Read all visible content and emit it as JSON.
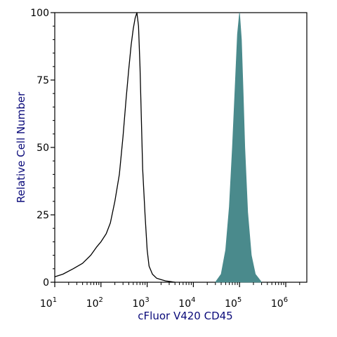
{
  "chart_data": {
    "type": "area",
    "title": "",
    "xlabel": "cFluor V420 CD45",
    "ylabel": "Relative Cell Number",
    "x_scale": "log",
    "xlim": [
      10,
      40000000
    ],
    "ylim": [
      0,
      100
    ],
    "y_ticks": [
      0,
      25,
      50,
      75,
      100
    ],
    "x_tick_labels": [
      {
        "base": "10",
        "exp": "1",
        "value": 10
      },
      {
        "base": "10",
        "exp": "2",
        "value": 100
      },
      {
        "base": "10",
        "exp": "3",
        "value": 1000
      },
      {
        "base": "10",
        "exp": "4",
        "value": 10000
      },
      {
        "base": "10",
        "exp": "5",
        "value": 100000
      },
      {
        "base": "10",
        "exp": "6",
        "value": 1000000
      }
    ],
    "grid": false,
    "series": [
      {
        "style": "outline",
        "color": "#000000",
        "x": [
          10,
          15,
          25,
          40,
          60,
          80,
          100,
          130,
          160,
          200,
          250,
          300,
          350,
          400,
          450,
          500,
          550,
          600,
          650,
          700,
          750,
          800,
          900,
          1000,
          1100,
          1300,
          1600,
          2000,
          2500,
          3000,
          4000
        ],
        "y": [
          2,
          3,
          5,
          7,
          10,
          13,
          15,
          18,
          22,
          30,
          40,
          54,
          68,
          79,
          88,
          94,
          98,
          100,
          95,
          80,
          60,
          42,
          25,
          12,
          6,
          3,
          1.5,
          1,
          0.5,
          0.3,
          0
        ]
      },
      {
        "style": "filled",
        "color": "#4a8a8c",
        "x": [
          30000,
          40000,
          50000,
          60000,
          70000,
          80000,
          90000,
          100000,
          110000,
          120000,
          130000,
          150000,
          180000,
          220000,
          300000
        ],
        "y": [
          0,
          3,
          12,
          28,
          50,
          72,
          92,
          100,
          90,
          70,
          50,
          26,
          10,
          3,
          0
        ]
      }
    ]
  }
}
